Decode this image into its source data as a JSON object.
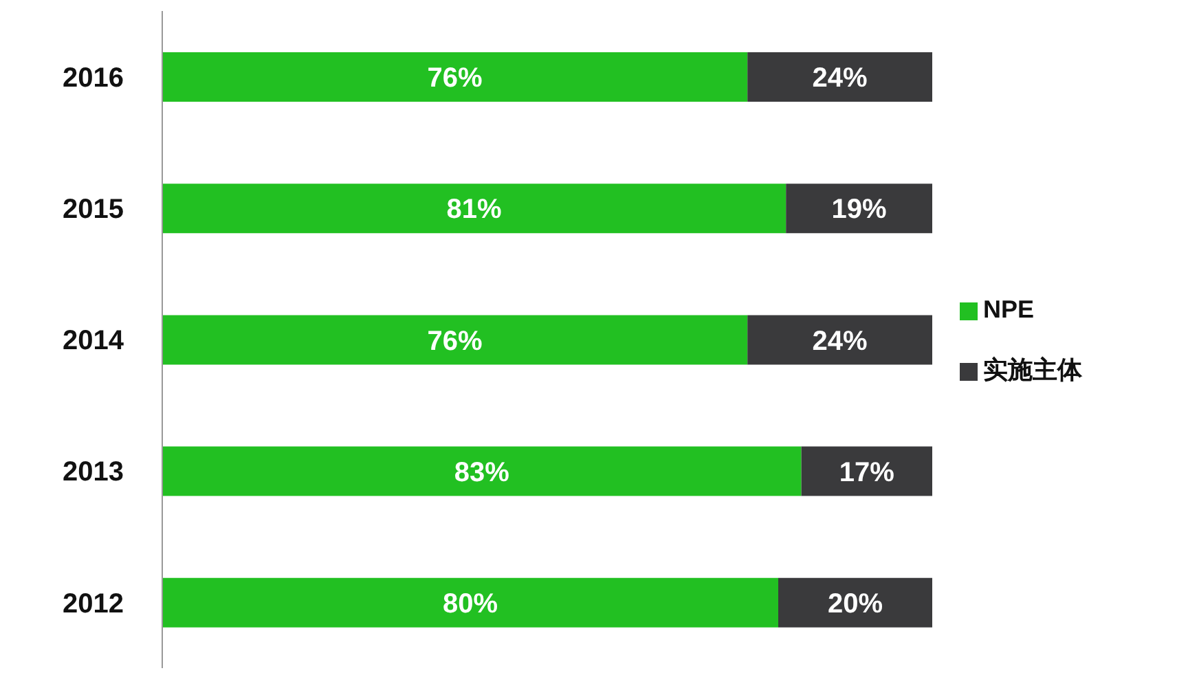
{
  "chart_data": {
    "type": "bar",
    "orientation": "horizontal",
    "stacked": true,
    "categories": [
      "2016",
      "2015",
      "2014",
      "2013",
      "2012"
    ],
    "series": [
      {
        "name": "NPE",
        "color": "#22c022",
        "values": [
          76,
          81,
          76,
          83,
          80
        ],
        "value_labels": [
          "76%",
          "81%",
          "76%",
          "83%",
          "80%"
        ]
      },
      {
        "name": "实施主体",
        "color": "#3a3a3c",
        "values": [
          24,
          19,
          24,
          17,
          20
        ],
        "value_labels": [
          "24%",
          "19%",
          "24%",
          "17%",
          "20%"
        ]
      }
    ],
    "xlim": [
      0,
      100
    ],
    "tick_labels": "y",
    "grid": false,
    "legend": "right"
  }
}
